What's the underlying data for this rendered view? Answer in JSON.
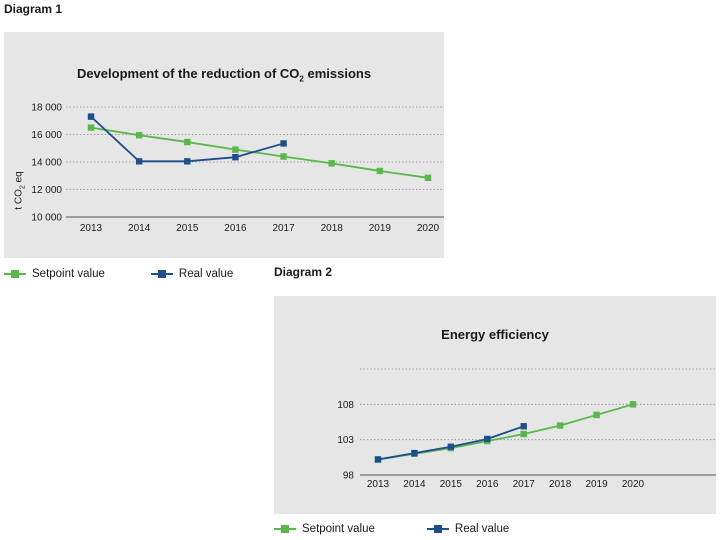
{
  "diagram1": {
    "label": "Diagram 1"
  },
  "diagram2": {
    "label": "Diagram 2"
  },
  "legend": {
    "setpoint": "Setpoint value",
    "real": "Real value"
  },
  "colors": {
    "setpoint": "#5bb64b",
    "real": "#1f4e8c",
    "panel": "#e6e6e6",
    "grid": "#8a8a8a"
  },
  "chart_data": [
    {
      "type": "line",
      "title": "Development of the reduction of CO2 emissions",
      "title_parts": {
        "main": "Development of the reduction of CO",
        "sub": "2",
        "tail": " emissions"
      },
      "ylabel": "t CO2 eq",
      "ylabel_parts": {
        "main": "t CO",
        "sub": "2",
        "tail": " eq"
      },
      "xlabel": "",
      "categories": [
        "2013",
        "2014",
        "2015",
        "2016",
        "2017",
        "2018",
        "2019",
        "2020"
      ],
      "ylim": [
        10000,
        18000
      ],
      "yticks": [
        10000,
        12000,
        14000,
        16000,
        18000
      ],
      "ytick_labels": [
        "10 000",
        "12 000",
        "14 000",
        "16 000",
        "18 000"
      ],
      "grid": true,
      "series": [
        {
          "name": "Setpoint value",
          "values": [
            16500,
            15950,
            15450,
            14900,
            14400,
            13900,
            13350,
            12850
          ]
        },
        {
          "name": "Real value",
          "values": [
            17300,
            14050,
            14050,
            14350,
            15350,
            null,
            null,
            null
          ]
        }
      ]
    },
    {
      "type": "line",
      "title": "Energy efficiency",
      "xlabel": "",
      "ylabel": "",
      "categories": [
        "2013",
        "2014",
        "2015",
        "2016",
        "2017",
        "2018",
        "2019",
        "2020"
      ],
      "ylim": [
        98,
        113
      ],
      "yticks": [
        98,
        103,
        108,
        113
      ],
      "ytick_labels": [
        "98",
        "103",
        "108",
        ""
      ],
      "grid": true,
      "series": [
        {
          "name": "Setpoint value",
          "values": [
            100.2,
            101.0,
            101.8,
            102.8,
            103.8,
            105.0,
            106.5,
            108.0
          ]
        },
        {
          "name": "Real value",
          "values": [
            100.2,
            101.1,
            102.0,
            103.1,
            104.9,
            null,
            null,
            null
          ]
        }
      ]
    }
  ]
}
